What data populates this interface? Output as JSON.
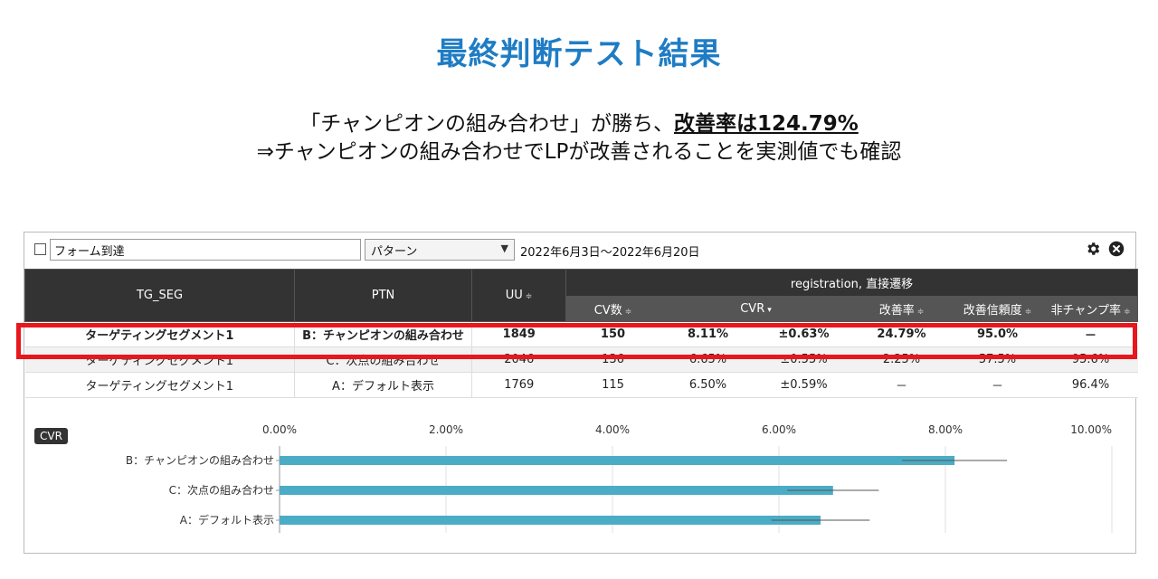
{
  "header": {
    "title": "最終判断テスト結果",
    "subtitle_line1_prefix": "「チャンピオンの組み合わせ」が勝ち、",
    "subtitle_line1_highlight": "改善率は124.79%",
    "subtitle_line2": "⇒チャンピオンの組み合わせでLPが改善されることを実測値でも確認"
  },
  "toolbar": {
    "metric_value": "フォーム到達",
    "pattern_select": "パターン",
    "date_range": "2022年6月3日～2022年6月20日",
    "icons": [
      "gear-icon",
      "close-circle-icon"
    ]
  },
  "table": {
    "headers": {
      "tg_seg": "TG_SEG",
      "ptn": "PTN",
      "uu": "UU",
      "group": "registration, 直接遷移",
      "cv": "CV数",
      "cvr": "CVR",
      "improve": "改善率",
      "confidence": "改善信頼度",
      "non_champ": "非チャンプ率"
    },
    "sort_glyph": "≑",
    "cvr_sort_glyph": "▾",
    "rows": [
      {
        "seg": "ターゲティングセグメント1",
        "ptn": "B：チャンピオンの組み合わせ",
        "uu": "1849",
        "cv": "150",
        "cvr": "8.11%",
        "err": "±0.63%",
        "improve": "24.79%",
        "confidence": "95.0%",
        "non_champ": "－"
      },
      {
        "seg": "ターゲティングセグメント1",
        "ptn": "C：次点の組み合わせ",
        "uu": "2046",
        "cv": "136",
        "cvr": "6.65%",
        "err": "±0.55%",
        "improve": "2.25%",
        "confidence": "57.5%",
        "non_champ": "95.6%"
      },
      {
        "seg": "ターゲティングセグメント1",
        "ptn": "A：デフォルト表示",
        "uu": "1769",
        "cv": "115",
        "cvr": "6.50%",
        "err": "±0.59%",
        "improve": "－",
        "confidence": "－",
        "non_champ": "96.4%"
      }
    ]
  },
  "chart_data": {
    "type": "bar",
    "title": "CVR",
    "categories": [
      "B：チャンピオンの組み合わせ",
      "C：次点の組み合わせ",
      "A：デフォルト表示"
    ],
    "values": [
      8.11,
      6.65,
      6.5
    ],
    "errors": [
      0.63,
      0.55,
      0.59
    ],
    "xlim": [
      0,
      10
    ],
    "xticks": [
      "0.00%",
      "2.00%",
      "4.00%",
      "6.00%",
      "8.00%",
      "10.00%"
    ],
    "grid": true,
    "bar_color": "#4bacc6"
  },
  "colors": {
    "title": "#1f7cc4",
    "header_bg": "#333333",
    "highlight_border": "#e8161d"
  }
}
